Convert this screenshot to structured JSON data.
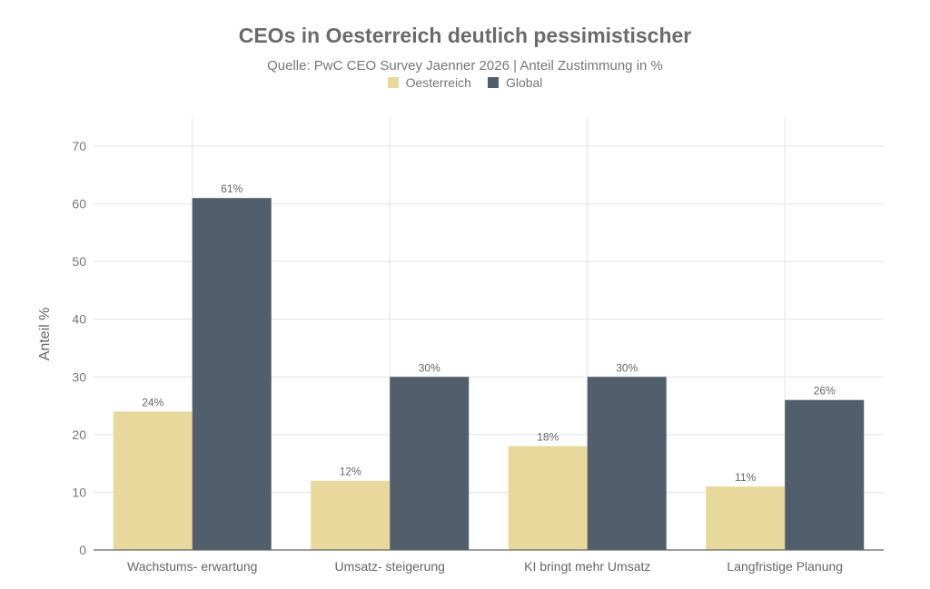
{
  "chart_data": {
    "type": "bar",
    "title": "CEOs in Oesterreich deutlich pessimistischer",
    "subtitle": "Quelle: PwC CEO Survey Jaenner 2026 | Anteil Zustimmung in %",
    "xlabel": "",
    "ylabel": "Anteil %",
    "ylim": [
      0,
      70
    ],
    "yticks": [
      0,
      10,
      20,
      30,
      40,
      50,
      60,
      70
    ],
    "grid": true,
    "legend_position": "top-center",
    "categories": [
      "Wachstums- erwartung",
      "Umsatz- steigerung",
      "KI bringt mehr Umsatz",
      "Langfristige Planung"
    ],
    "series": [
      {
        "name": "Oesterreich",
        "color": "#e8d89c",
        "values": [
          24,
          12,
          18,
          11
        ],
        "labels": [
          "24%",
          "12%",
          "18%",
          "11%"
        ]
      },
      {
        "name": "Global",
        "color": "#515e6b",
        "values": [
          61,
          30,
          30,
          26
        ],
        "labels": [
          "61%",
          "30%",
          "30%",
          "26%"
        ]
      }
    ]
  }
}
